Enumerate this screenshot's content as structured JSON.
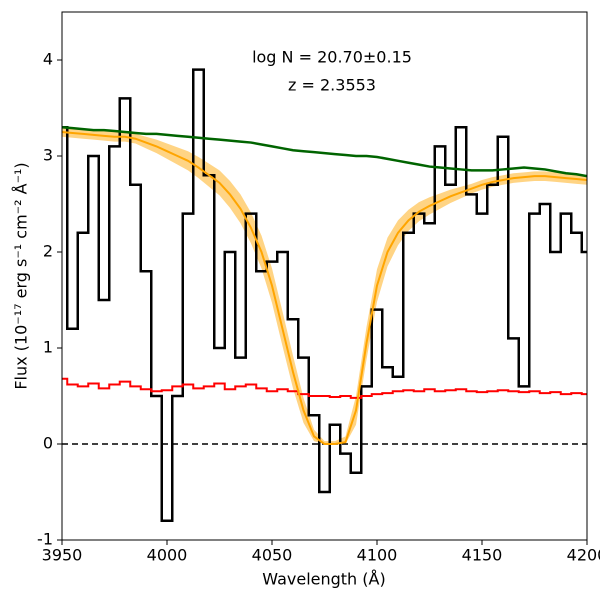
{
  "chart_data": {
    "type": "spectrum",
    "xlabel": "Wavelength (Å)",
    "ylabel": "Flux (10⁻¹⁷ erg s⁻¹ cm⁻² Å⁻¹)",
    "annotations": [
      "log N = 20.70±0.15",
      "z = 2.3553"
    ],
    "xlim": [
      3950,
      4200
    ],
    "ylim": [
      -1,
      4.5
    ],
    "xticks": [
      3950,
      4000,
      4050,
      4100,
      4150,
      4200
    ],
    "yticks": [
      -1,
      0,
      1,
      2,
      3,
      4
    ],
    "hline": {
      "value": 0,
      "color": "#000000"
    },
    "x": [
      3950,
      3955,
      3960,
      3965,
      3970,
      3975,
      3980,
      3985,
      3990,
      3995,
      4000,
      4005,
      4010,
      4015,
      4020,
      4025,
      4030,
      4035,
      4040,
      4045,
      4050,
      4055,
      4060,
      4065,
      4070,
      4075,
      4080,
      4085,
      4090,
      4095,
      4100,
      4105,
      4110,
      4115,
      4120,
      4125,
      4130,
      4135,
      4140,
      4145,
      4150,
      4155,
      4160,
      4165,
      4170,
      4175,
      4180,
      4185,
      4190,
      4195,
      4200
    ],
    "band": {
      "color": "#ffb732",
      "upper": [
        3.3,
        3.29,
        3.28,
        3.27,
        3.26,
        3.25,
        3.25,
        3.23,
        3.2,
        3.17,
        3.13,
        3.09,
        3.05,
        2.99,
        2.92,
        2.85,
        2.74,
        2.6,
        2.41,
        2.17,
        1.83,
        1.38,
        0.92,
        0.48,
        0.15,
        0.03,
        0.03,
        0.08,
        0.5,
        1.22,
        1.82,
        2.15,
        2.33,
        2.44,
        2.52,
        2.57,
        2.61,
        2.65,
        2.68,
        2.71,
        2.75,
        2.78,
        2.8,
        2.82,
        2.83,
        2.84,
        2.84,
        2.83,
        2.82,
        2.81,
        2.8
      ],
      "lower": [
        3.2,
        3.19,
        3.18,
        3.17,
        3.16,
        3.15,
        3.15,
        3.13,
        3.08,
        3.03,
        2.97,
        2.91,
        2.85,
        2.77,
        2.68,
        2.59,
        2.46,
        2.3,
        2.09,
        1.83,
        1.47,
        1.02,
        0.58,
        0.22,
        0.03,
        0,
        0,
        0,
        0.2,
        0.88,
        1.48,
        1.85,
        2.07,
        2.22,
        2.32,
        2.39,
        2.45,
        2.51,
        2.56,
        2.61,
        2.65,
        2.68,
        2.7,
        2.72,
        2.73,
        2.74,
        2.74,
        2.73,
        2.72,
        2.71,
        2.7
      ]
    },
    "series": [
      {
        "color": "#000000",
        "style": "step",
        "width": 2.5,
        "values": [
          3.3,
          1.2,
          2.2,
          3.0,
          1.5,
          3.1,
          3.6,
          2.7,
          1.8,
          0.5,
          -0.8,
          0.5,
          2.4,
          3.9,
          2.8,
          1.0,
          2.0,
          0.9,
          2.4,
          1.8,
          1.9,
          2.0,
          1.3,
          0.9,
          0.3,
          -0.5,
          0.2,
          -0.1,
          -0.3,
          0.6,
          1.4,
          0.8,
          0.7,
          2.2,
          2.4,
          2.3,
          3.1,
          2.7,
          3.3,
          2.6,
          2.4,
          2.7,
          3.2,
          1.1,
          0.6,
          2.4,
          2.5,
          2.0,
          2.4,
          2.2,
          2.0
        ]
      },
      {
        "color": "#ff0000",
        "style": "step",
        "width": 2,
        "values": [
          0.68,
          0.62,
          0.6,
          0.63,
          0.58,
          0.62,
          0.65,
          0.6,
          0.57,
          0.55,
          0.56,
          0.6,
          0.62,
          0.58,
          0.6,
          0.63,
          0.57,
          0.6,
          0.62,
          0.58,
          0.55,
          0.57,
          0.55,
          0.52,
          0.5,
          0.5,
          0.49,
          0.5,
          0.48,
          0.5,
          0.52,
          0.53,
          0.55,
          0.56,
          0.55,
          0.57,
          0.55,
          0.56,
          0.57,
          0.55,
          0.54,
          0.55,
          0.56,
          0.55,
          0.54,
          0.55,
          0.53,
          0.54,
          0.52,
          0.53,
          0.52
        ]
      },
      {
        "color": "#006400",
        "style": "line",
        "width": 2.5,
        "values": [
          3.3,
          3.29,
          3.28,
          3.27,
          3.27,
          3.26,
          3.25,
          3.24,
          3.23,
          3.23,
          3.22,
          3.21,
          3.2,
          3.19,
          3.18,
          3.17,
          3.16,
          3.15,
          3.14,
          3.12,
          3.1,
          3.08,
          3.06,
          3.05,
          3.04,
          3.03,
          3.02,
          3.01,
          3.0,
          3.0,
          2.99,
          2.97,
          2.95,
          2.93,
          2.91,
          2.89,
          2.88,
          2.87,
          2.86,
          2.85,
          2.85,
          2.85,
          2.86,
          2.87,
          2.88,
          2.87,
          2.86,
          2.84,
          2.82,
          2.81,
          2.79
        ]
      },
      {
        "color": "#ffa500",
        "style": "line",
        "width": 2,
        "values": [
          3.25,
          3.24,
          3.23,
          3.22,
          3.21,
          3.2,
          3.2,
          3.18,
          3.14,
          3.1,
          3.05,
          3.0,
          2.95,
          2.88,
          2.8,
          2.72,
          2.6,
          2.45,
          2.25,
          2.0,
          1.65,
          1.2,
          0.75,
          0.35,
          0.08,
          0,
          0,
          0.02,
          0.35,
          1.05,
          1.65,
          2.0,
          2.2,
          2.33,
          2.42,
          2.48,
          2.53,
          2.58,
          2.62,
          2.66,
          2.7,
          2.73,
          2.75,
          2.77,
          2.78,
          2.79,
          2.79,
          2.78,
          2.77,
          2.76,
          2.75
        ]
      }
    ]
  }
}
